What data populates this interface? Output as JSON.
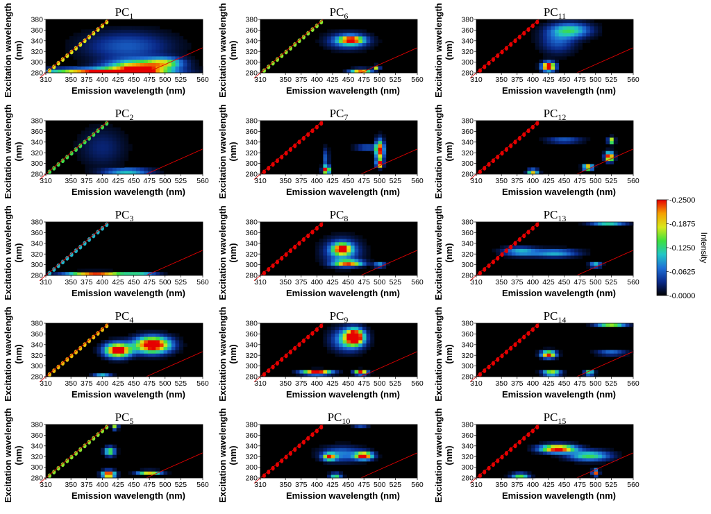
{
  "chart_data": {
    "type": "heatmap",
    "title": "",
    "xlabel": "Emission wavelength (nm)",
    "ylabel_line1": "Excitation wavelength",
    "ylabel_line2": "(nm)",
    "x_ticks": [
      "310",
      "350",
      "375",
      "400",
      "425",
      "450",
      "475",
      "500",
      "525",
      "560"
    ],
    "y_ticks": [
      "280",
      "300",
      "320",
      "340",
      "360",
      "380"
    ],
    "xlim": [
      310,
      560
    ],
    "ylim": [
      280,
      380
    ],
    "colorbar": {
      "title": "Intensity",
      "ticks": [
        "-0.2500",
        "-0.1875",
        "-0.1250",
        "-0.0625",
        "-0.0000"
      ],
      "range": [
        0,
        0.25
      ],
      "colors": [
        "#000000",
        "#0a2a8a",
        "#1e6fd6",
        "#21c6c6",
        "#3ee03e",
        "#d8e81a",
        "#f5a000",
        "#e60000"
      ]
    },
    "panels": [
      {
        "title_base": "PC",
        "sub": "1",
        "spots": [
          [
            400,
            282,
            190,
            14,
            0.26
          ],
          [
            460,
            290,
            110,
            30,
            0.24
          ],
          [
            500,
            300,
            60,
            20,
            0.12
          ],
          [
            440,
            330,
            150,
            60,
            0.06
          ]
        ],
        "diag": 0.18
      },
      {
        "title_base": "PC",
        "sub": "2",
        "spots": [
          [
            440,
            285,
            80,
            12,
            0.12
          ],
          [
            400,
            330,
            80,
            80,
            0.03
          ]
        ],
        "diag": 0.14
      },
      {
        "title_base": "PC",
        "sub": "3",
        "spots": [
          [
            390,
            283,
            100,
            8,
            0.24
          ],
          [
            460,
            282,
            60,
            6,
            0.12
          ]
        ],
        "diag": 0.1
      },
      {
        "title_base": "PC",
        "sub": "4",
        "spots": [
          [
            425,
            330,
            45,
            28,
            0.3
          ],
          [
            480,
            340,
            60,
            32,
            0.32
          ],
          [
            400,
            283,
            30,
            8,
            0.1
          ]
        ],
        "diag": 0.2
      },
      {
        "title_base": "PC",
        "sub": "5",
        "spots": [
          [
            410,
            287,
            22,
            14,
            0.3
          ],
          [
            412,
            330,
            18,
            18,
            0.16
          ],
          [
            475,
            290,
            40,
            8,
            0.2
          ],
          [
            420,
            375,
            10,
            8,
            0.22
          ]
        ],
        "diag": 0.16
      },
      {
        "title_base": "PC",
        "sub": "6",
        "spots": [
          [
            455,
            342,
            40,
            16,
            0.22
          ],
          [
            450,
            340,
            70,
            32,
            0.09
          ],
          [
            470,
            284,
            35,
            8,
            0.24
          ],
          [
            495,
            290,
            10,
            8,
            0.18
          ]
        ],
        "diag": 0.16
      },
      {
        "title_base": "PC",
        "sub": "7",
        "spots": [
          [
            415,
            288,
            12,
            16,
            0.28
          ],
          [
            500,
            325,
            14,
            40,
            0.26
          ],
          [
            500,
            300,
            10,
            14,
            0.3
          ],
          [
            480,
            330,
            40,
            10,
            0.08
          ],
          [
            415,
            310,
            8,
            40,
            0.08
          ]
        ],
        "diag": 0.28
      },
      {
        "title_base": "PC",
        "sub": "8",
        "spots": [
          [
            440,
            330,
            30,
            22,
            0.22
          ],
          [
            450,
            303,
            50,
            12,
            0.22
          ],
          [
            440,
            325,
            60,
            50,
            0.1
          ],
          [
            500,
            300,
            20,
            10,
            0.1
          ]
        ],
        "diag": 0.28
      },
      {
        "title_base": "PC",
        "sub": "9",
        "spots": [
          [
            460,
            355,
            30,
            30,
            0.32
          ],
          [
            400,
            288,
            50,
            9,
            0.3
          ],
          [
            470,
            288,
            22,
            9,
            0.28
          ],
          [
            450,
            350,
            55,
            45,
            0.12
          ]
        ],
        "diag": 0.28
      },
      {
        "title_base": "PC",
        "sub": "10",
        "spots": [
          [
            420,
            320,
            22,
            14,
            0.22
          ],
          [
            475,
            322,
            30,
            15,
            0.28
          ],
          [
            470,
            380,
            25,
            6,
            0.2
          ],
          [
            430,
            285,
            20,
            8,
            0.18
          ],
          [
            440,
            325,
            70,
            30,
            0.08
          ]
        ],
        "diag": 0.26
      },
      {
        "title_base": "PC",
        "sub": "11",
        "spots": [
          [
            425,
            292,
            22,
            18,
            0.32
          ],
          [
            460,
            360,
            70,
            30,
            0.12
          ],
          [
            440,
            340,
            60,
            50,
            0.06
          ]
        ],
        "diag": 0.3
      },
      {
        "title_base": "PC",
        "sub": "12",
        "spots": [
          [
            400,
            285,
            18,
            8,
            0.26
          ],
          [
            488,
            293,
            16,
            10,
            0.28
          ],
          [
            522,
            313,
            14,
            18,
            0.3
          ],
          [
            525,
            343,
            10,
            12,
            0.22
          ],
          [
            450,
            343,
            60,
            8,
            0.1
          ]
        ],
        "diag": 0.3
      },
      {
        "title_base": "PC",
        "sub": "13",
        "spots": [
          [
            435,
            322,
            80,
            16,
            0.1
          ],
          [
            500,
            300,
            20,
            10,
            0.12
          ],
          [
            520,
            378,
            60,
            6,
            0.14
          ],
          [
            380,
            325,
            60,
            18,
            0.1
          ]
        ],
        "diag": 0.3
      },
      {
        "title_base": "PC",
        "sub": "14",
        "spots": [
          [
            425,
            322,
            25,
            14,
            0.26
          ],
          [
            430,
            287,
            30,
            9,
            0.24
          ],
          [
            490,
            287,
            16,
            8,
            0.22
          ],
          [
            525,
            378,
            50,
            8,
            0.18
          ],
          [
            525,
            325,
            50,
            10,
            0.08
          ]
        ],
        "diag": 0.3
      },
      {
        "title_base": "PC",
        "sub": "15",
        "spots": [
          [
            440,
            335,
            60,
            16,
            0.28
          ],
          [
            490,
            322,
            70,
            20,
            0.14
          ],
          [
            380,
            285,
            30,
            8,
            0.2
          ],
          [
            500,
            290,
            10,
            12,
            0.24
          ]
        ],
        "diag": 0.3
      }
    ]
  }
}
